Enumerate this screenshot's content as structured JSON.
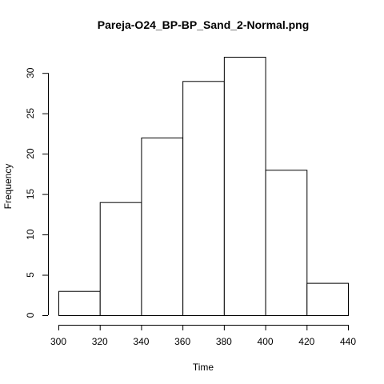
{
  "chart_data": {
    "type": "bar",
    "subtype": "histogram",
    "title": "Pareja-O24_BP-BP_Sand_2-Normal.png",
    "xlabel": "Time",
    "ylabel": "Frequency",
    "bins": [
      {
        "start": 300,
        "end": 320,
        "count": 3
      },
      {
        "start": 320,
        "end": 340,
        "count": 14
      },
      {
        "start": 340,
        "end": 360,
        "count": 22
      },
      {
        "start": 360,
        "end": 380,
        "count": 29
      },
      {
        "start": 380,
        "end": 400,
        "count": 32
      },
      {
        "start": 400,
        "end": 420,
        "count": 18
      },
      {
        "start": 420,
        "end": 440,
        "count": 4
      }
    ],
    "xlim": [
      300,
      440
    ],
    "ylim": [
      0,
      32
    ],
    "x_ticks": [
      "300",
      "320",
      "340",
      "360",
      "380",
      "400",
      "420",
      "440"
    ],
    "y_ticks": [
      "0",
      "5",
      "10",
      "15",
      "20",
      "25",
      "30"
    ],
    "grid": false,
    "bar_fill": "#ffffff",
    "bar_stroke": "#000000"
  }
}
